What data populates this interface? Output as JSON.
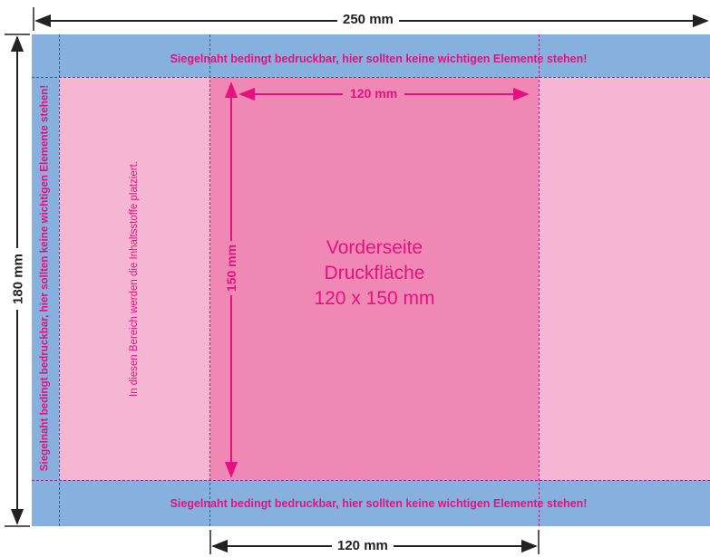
{
  "dimensions": {
    "total_width": "250 mm",
    "total_height": "180 mm",
    "front_width_top": "120 mm",
    "front_height": "150 mm",
    "front_width_bottom": "120 mm"
  },
  "seal_seam_text": "Siegelnaht bedingt bedruckbar, hier sollten keine wichtigen Elemente stehen!",
  "ingredients_note": "In diesen Bereich werden die Inhaltsstoffe platziert.",
  "front_label": {
    "line1": "Vorderseite",
    "line2": "Druckfläche",
    "line3": "120 x 150 mm"
  },
  "colors": {
    "seal_band": "#86b1df",
    "side_panel": "#f5b6d4",
    "front_panel": "#f088b6",
    "accent_magenta": "#e3127e",
    "dash_purple": "#a0288a"
  }
}
